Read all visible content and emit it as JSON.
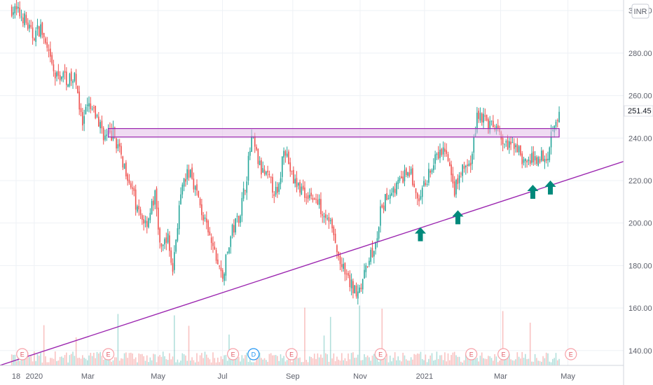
{
  "currency_badge": "INR",
  "last_price_label": "251.45",
  "colors": {
    "up": "#26a69a",
    "down": "#ef5350",
    "trendline": "#9c27b0",
    "zone_fill": "#e1bee7",
    "zone_stroke": "#9c27b0",
    "arrow": "#00897b",
    "grid": "#eef1f5",
    "axis_text": "#5d606b",
    "event_circle": "#f7a1a8"
  },
  "chart_data": {
    "type": "candlestick",
    "y_ticks": [
      "300.00",
      "280.00",
      "260.00",
      "240.00",
      "220.00",
      "200.00",
      "180.00",
      "160.00",
      "140.00"
    ],
    "ylim": [
      133,
      305
    ],
    "x_ticks": [
      {
        "label": "18",
        "t": 0.075
      },
      {
        "label": "2020",
        "t": 0.385
      },
      {
        "label": "Mar",
        "t": 1.3
      },
      {
        "label": "May",
        "t": 2.5
      },
      {
        "label": "Jul",
        "t": 3.6
      },
      {
        "label": "Sep",
        "t": 4.8
      },
      {
        "label": "Nov",
        "t": 5.95
      },
      {
        "label": "2021",
        "t": 7.05
      },
      {
        "label": "Mar",
        "t": 8.35
      },
      {
        "label": "May",
        "t": 9.5
      }
    ],
    "xlim": [
      -0.2,
      10.45
    ],
    "last_price": 251.45,
    "price_path": [
      [
        0.0,
        301
      ],
      [
        0.2,
        297
      ],
      [
        0.35,
        288
      ],
      [
        0.5,
        292
      ],
      [
        0.6,
        281
      ],
      [
        0.75,
        268
      ],
      [
        0.85,
        270
      ],
      [
        1.0,
        267
      ],
      [
        1.1,
        268
      ],
      [
        1.2,
        245
      ],
      [
        1.3,
        255
      ],
      [
        1.45,
        250
      ],
      [
        1.6,
        240
      ],
      [
        1.75,
        242
      ],
      [
        1.85,
        232
      ],
      [
        2.0,
        222
      ],
      [
        2.15,
        205
      ],
      [
        2.3,
        200
      ],
      [
        2.45,
        213
      ],
      [
        2.55,
        185
      ],
      [
        2.65,
        195
      ],
      [
        2.75,
        178
      ],
      [
        2.85,
        205
      ],
      [
        2.95,
        220
      ],
      [
        3.05,
        225
      ],
      [
        3.2,
        210
      ],
      [
        3.35,
        195
      ],
      [
        3.5,
        183
      ],
      [
        3.6,
        174
      ],
      [
        3.75,
        195
      ],
      [
        3.9,
        205
      ],
      [
        4.0,
        220
      ],
      [
        4.1,
        240
      ],
      [
        4.25,
        225
      ],
      [
        4.4,
        220
      ],
      [
        4.55,
        212
      ],
      [
        4.65,
        238
      ],
      [
        4.8,
        220
      ],
      [
        4.95,
        216
      ],
      [
        5.15,
        212
      ],
      [
        5.3,
        207
      ],
      [
        5.45,
        200
      ],
      [
        5.55,
        186
      ],
      [
        5.7,
        175
      ],
      [
        5.85,
        168
      ],
      [
        6.0,
        172
      ],
      [
        6.1,
        185
      ],
      [
        6.2,
        186
      ],
      [
        6.3,
        205
      ],
      [
        6.45,
        215
      ],
      [
        6.6,
        218
      ],
      [
        6.8,
        225
      ],
      [
        6.95,
        208
      ],
      [
        7.1,
        222
      ],
      [
        7.25,
        230
      ],
      [
        7.4,
        235
      ],
      [
        7.55,
        215
      ],
      [
        7.7,
        225
      ],
      [
        7.85,
        228
      ],
      [
        7.95,
        252
      ],
      [
        8.05,
        250
      ],
      [
        8.15,
        245
      ],
      [
        8.25,
        245
      ],
      [
        8.35,
        240
      ],
      [
        8.5,
        235
      ],
      [
        8.6,
        238
      ],
      [
        8.75,
        228
      ],
      [
        8.9,
        230
      ],
      [
        9.05,
        232
      ],
      [
        9.15,
        232
      ],
      [
        9.25,
        248
      ],
      [
        9.35,
        251.45
      ]
    ],
    "support_trendline": [
      [
        -0.2,
        133
      ],
      [
        10.45,
        229
      ]
    ],
    "resistance_zone": {
      "t_start": 1.65,
      "t_end": 9.35,
      "y_low": 240.5,
      "y_high": 244.5
    },
    "arrows": [
      {
        "t": 6.98,
        "y_tip": 200
      },
      {
        "t": 7.62,
        "y_tip": 208
      },
      {
        "t": 8.9,
        "y_tip": 220
      },
      {
        "t": 9.2,
        "y_tip": 222
      }
    ],
    "event_markers": [
      {
        "label": "E",
        "t": 0.18
      },
      {
        "label": "E",
        "t": 1.65
      },
      {
        "label": "E",
        "t": 3.78
      },
      {
        "label": "D",
        "t": 4.13
      },
      {
        "label": "E",
        "t": 4.78
      },
      {
        "label": "E",
        "t": 6.3
      },
      {
        "label": "E",
        "t": 7.85
      },
      {
        "label": "E",
        "t": 8.4
      },
      {
        "label": "E",
        "t": 9.55
      }
    ]
  }
}
